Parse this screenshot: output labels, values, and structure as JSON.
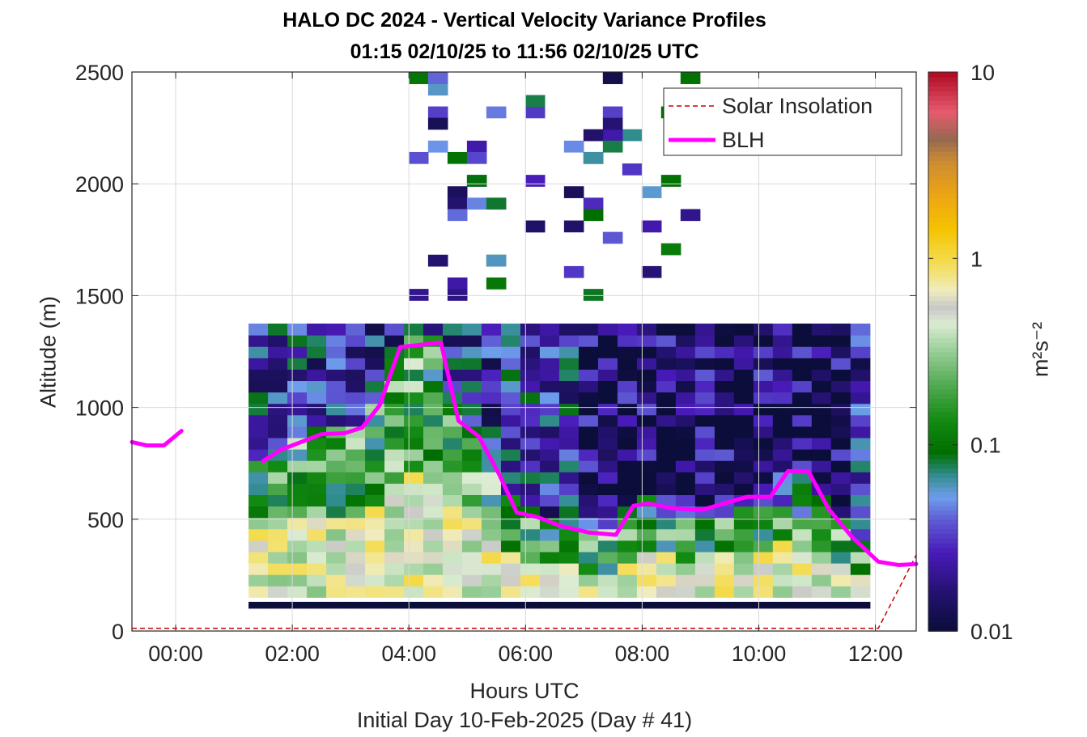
{
  "chart_data": {
    "type": "heatmap",
    "title": "HALO DC 2024 - Vertical Velocity Variance Profiles",
    "subtitle": "01:15 02/10/25 to 11:56 02/10/25  UTC",
    "xlabel": "Hours UTC",
    "xlabel_2": "Initial Day 10-Feb-2025 (Day # 41)",
    "ylabel": "Altitude (m)",
    "x_ticks": [
      "00:00",
      "02:00",
      "04:00",
      "06:00",
      "08:00",
      "10:00",
      "12:00"
    ],
    "x_tick_hours": [
      0,
      2,
      4,
      6,
      8,
      10,
      12
    ],
    "xlim_hours": [
      -0.75,
      12.7
    ],
    "y_ticks": [
      "0",
      "500",
      "1000",
      "1500",
      "2000",
      "2500"
    ],
    "ylim": [
      0,
      2500
    ],
    "grid": true,
    "colorbar": {
      "label": "m²s⁻²",
      "ticks": [
        "0.01",
        "0.1",
        "1",
        "10"
      ],
      "scale": "log",
      "range": [
        0.01,
        10
      ]
    },
    "legend": {
      "position": "top-right",
      "entries": [
        {
          "name": "Solar Insolation",
          "color": "#cc0000",
          "style": "dashed"
        },
        {
          "name": "BLH",
          "color": "#ff00ff",
          "style": "solid"
        }
      ]
    },
    "heatmap": {
      "time_start_hours": 1.25,
      "time_end_hours": 11.93,
      "bin_width_hours": 0.333,
      "gate_height_m": 51,
      "min_altitude_m": 100,
      "note_values": "Field values in m2 s-2 (log10 range -2 to 1); estimated from colors"
    },
    "series": [
      {
        "name": "BLH",
        "color": "#ff00ff",
        "segments": [
          {
            "x": [
              -0.75,
              -0.5,
              -0.2,
              0.1
            ],
            "y": [
              845,
              830,
              830,
              895
            ]
          },
          {
            "x": [
              1.5,
              1.8,
              2.1,
              2.5,
              2.9,
              3.2,
              3.5,
              3.85,
              4.2,
              4.55,
              4.85,
              5.2,
              5.55,
              5.85,
              6.2,
              6.6,
              7.1,
              7.55,
              7.85,
              8.1,
              8.5,
              9.0,
              9.4,
              9.8,
              10.2,
              10.5,
              10.85,
              11.2,
              11.6,
              12.05,
              12.4,
              12.7
            ],
            "y": [
              760,
              810,
              840,
              880,
              885,
              910,
              1010,
              1270,
              1280,
              1290,
              940,
              870,
              700,
              530,
              510,
              470,
              440,
              430,
              560,
              570,
              550,
              540,
              570,
              600,
              600,
              715,
              715,
              545,
              420,
              310,
              295,
              300
            ]
          }
        ]
      },
      {
        "name": "Solar Insolation",
        "color": "#cc0000",
        "x": [
          -0.75,
          12.05,
          12.7
        ],
        "y": [
          12,
          12,
          340
        ]
      }
    ]
  }
}
